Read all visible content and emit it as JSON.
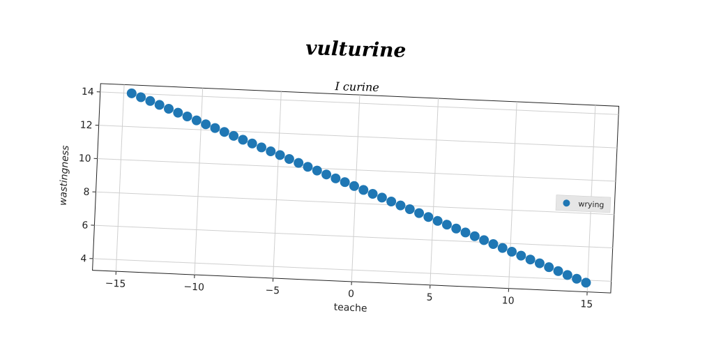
{
  "chart_data": {
    "type": "scatter",
    "title": "vulturine",
    "subtitle": "I curine",
    "xlabel": "teache",
    "ylabel": "wastingness",
    "xlim": [
      -16.5,
      16.5
    ],
    "ylim": [
      3.3,
      14.5
    ],
    "xticks": [
      -15,
      -10,
      -5,
      0,
      5,
      10,
      15
    ],
    "xtick_labels": [
      "−15",
      "−10",
      "−5",
      "0",
      "5",
      "10",
      "15"
    ],
    "yticks": [
      4,
      6,
      8,
      10,
      12,
      14
    ],
    "ytick_labels": [
      "4",
      "6",
      "8",
      "10",
      "12",
      "14"
    ],
    "grid": true,
    "legend_position": "right",
    "series": [
      {
        "name": "wrying",
        "color": "#1f77b4",
        "x": [
          -14.5,
          -13.9,
          -13.3,
          -12.7,
          -12.1,
          -11.5,
          -10.9,
          -10.3,
          -9.7,
          -9.1,
          -8.5,
          -7.9,
          -7.3,
          -6.7,
          -6.1,
          -5.5,
          -4.9,
          -4.3,
          -3.7,
          -3.1,
          -2.5,
          -1.9,
          -1.3,
          -0.7,
          -0.1,
          0.5,
          1.1,
          1.7,
          2.3,
          2.9,
          3.5,
          4.1,
          4.7,
          5.3,
          5.9,
          6.5,
          7.1,
          7.7,
          8.3,
          8.9,
          9.5,
          10.1,
          10.7,
          11.3,
          11.9,
          12.5,
          13.1,
          13.7,
          14.3,
          14.9
        ],
        "y": [
          14.0,
          13.79,
          13.59,
          13.38,
          13.17,
          12.96,
          12.76,
          12.55,
          12.34,
          12.14,
          11.93,
          11.72,
          11.51,
          11.31,
          11.1,
          10.89,
          10.69,
          10.48,
          10.27,
          10.06,
          9.86,
          9.65,
          9.44,
          9.24,
          9.03,
          8.82,
          8.61,
          8.41,
          8.2,
          7.99,
          7.79,
          7.58,
          7.37,
          7.16,
          6.96,
          6.75,
          6.54,
          6.34,
          6.13,
          5.92,
          5.71,
          5.51,
          5.3,
          5.09,
          4.89,
          4.68,
          4.47,
          4.26,
          4.06,
          3.85
        ]
      }
    ]
  }
}
